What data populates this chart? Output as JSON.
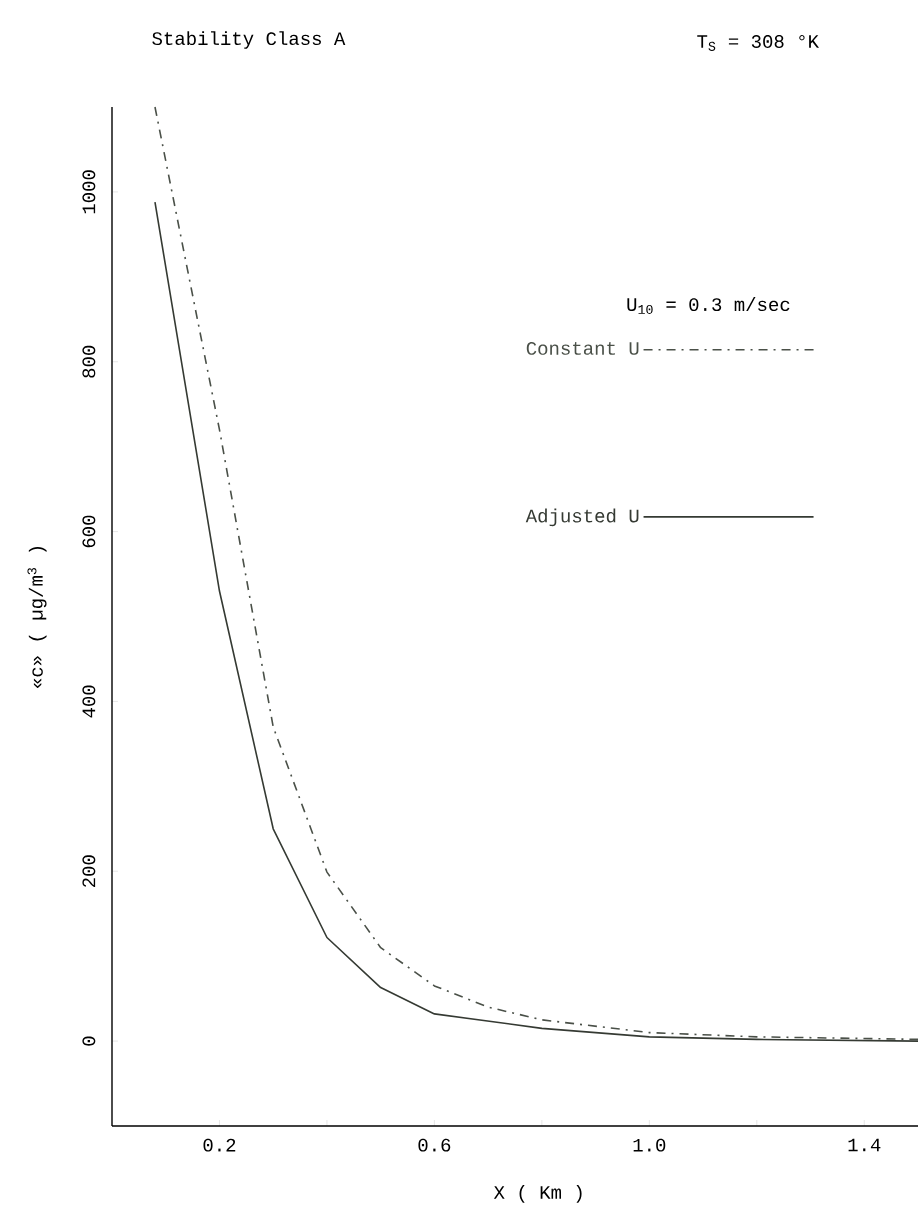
{
  "chart_data": {
    "type": "line",
    "title": "Stability Class A",
    "annotations": [
      "T$_{S}$ = 308 °K"
    ],
    "xlabel": "X ( Km )",
    "ylabel": "«c» ( µg/m$^{3}$ )",
    "legend_title": "U$_{10}$ = 0.3 m/sec",
    "legend": "top right",
    "marker": "none",
    "xlim": [
      0,
      1.5
    ],
    "ylim": [
      -100,
      1100
    ],
    "xticks": [
      0.2,
      {
        "value": 0.4,
        "label": null
      },
      0.6,
      {
        "value": 0.8,
        "label": null
      },
      {
        "value": 1.0,
        "label": "1.0"
      },
      {
        "value": 1.2,
        "label": null
      },
      1.4
    ],
    "yticks": [
      0,
      200,
      400,
      600,
      800,
      1000
    ],
    "series": [
      {
        "name": "Constant U",
        "color": "#4a5048",
        "line_style": "dashed",
        "x": [
          0.08,
          0.2,
          0.3,
          0.4,
          0.5,
          0.6,
          0.7,
          0.8,
          1.0,
          1.2,
          1.5
        ],
        "values": [
          1100,
          720,
          370,
          199,
          110,
          65,
          40,
          25,
          10,
          5,
          2
        ]
      },
      {
        "name": "Adjusted U",
        "color": "#353a33",
        "line_style": "solid",
        "x": [
          0.08,
          0.2,
          0.3,
          0.4,
          0.5,
          0.6,
          0.8,
          1.0,
          1.2,
          1.5
        ],
        "values": [
          988,
          530,
          250,
          122,
          63,
          32,
          15,
          5,
          2,
          0
        ]
      }
    ]
  }
}
